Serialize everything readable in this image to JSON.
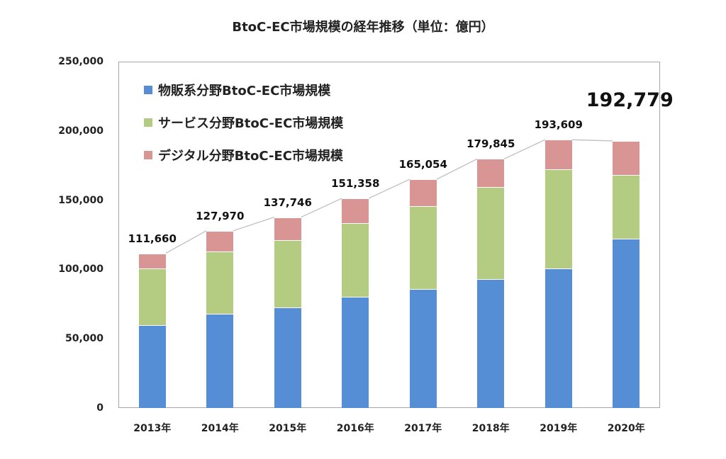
{
  "chart_data": {
    "type": "bar",
    "stacked": true,
    "title": "BtoC-EC市場規模の経年推移（単位：億円）",
    "xlabel": "",
    "ylabel": "",
    "ylim": [
      0,
      250000
    ],
    "yticks": [
      "0",
      "50,000",
      "100,000",
      "150,000",
      "200,000",
      "250,000"
    ],
    "categories": [
      "2013年",
      "2014年",
      "2015年",
      "2016年",
      "2017年",
      "2018年",
      "2019年",
      "2020年"
    ],
    "series": [
      {
        "name": "物販系分野BtoC-EC市場規模",
        "color": "#558ed5",
        "values": [
          59931,
          68043,
          72398,
          80043,
          86008,
          92992,
          100515,
          122333
        ]
      },
      {
        "name": "サービス分野BtoC-EC市場規模",
        "color": "#b3cc82",
        "values": [
          40816,
          44816,
          49014,
          53532,
          59568,
          66471,
          71672,
          45832
        ]
      },
      {
        "name": "デジタル分野BtoC-EC市場規模",
        "color": "#d99594",
        "values": [
          10913,
          15111,
          16334,
          17783,
          19478,
          20382,
          21422,
          24614
        ]
      }
    ],
    "totals": [
      111660,
      127970,
      137746,
      151358,
      165054,
      179845,
      193609,
      192779
    ],
    "total_labels": [
      "111,660",
      "127,970",
      "137,746",
      "151,358",
      "165,054",
      "179,845",
      "193,609",
      "192,779"
    ],
    "highlight_total_index": 7,
    "grid": false,
    "legend_position": "top-left inside",
    "total_line_color": "#bfbfbf"
  }
}
